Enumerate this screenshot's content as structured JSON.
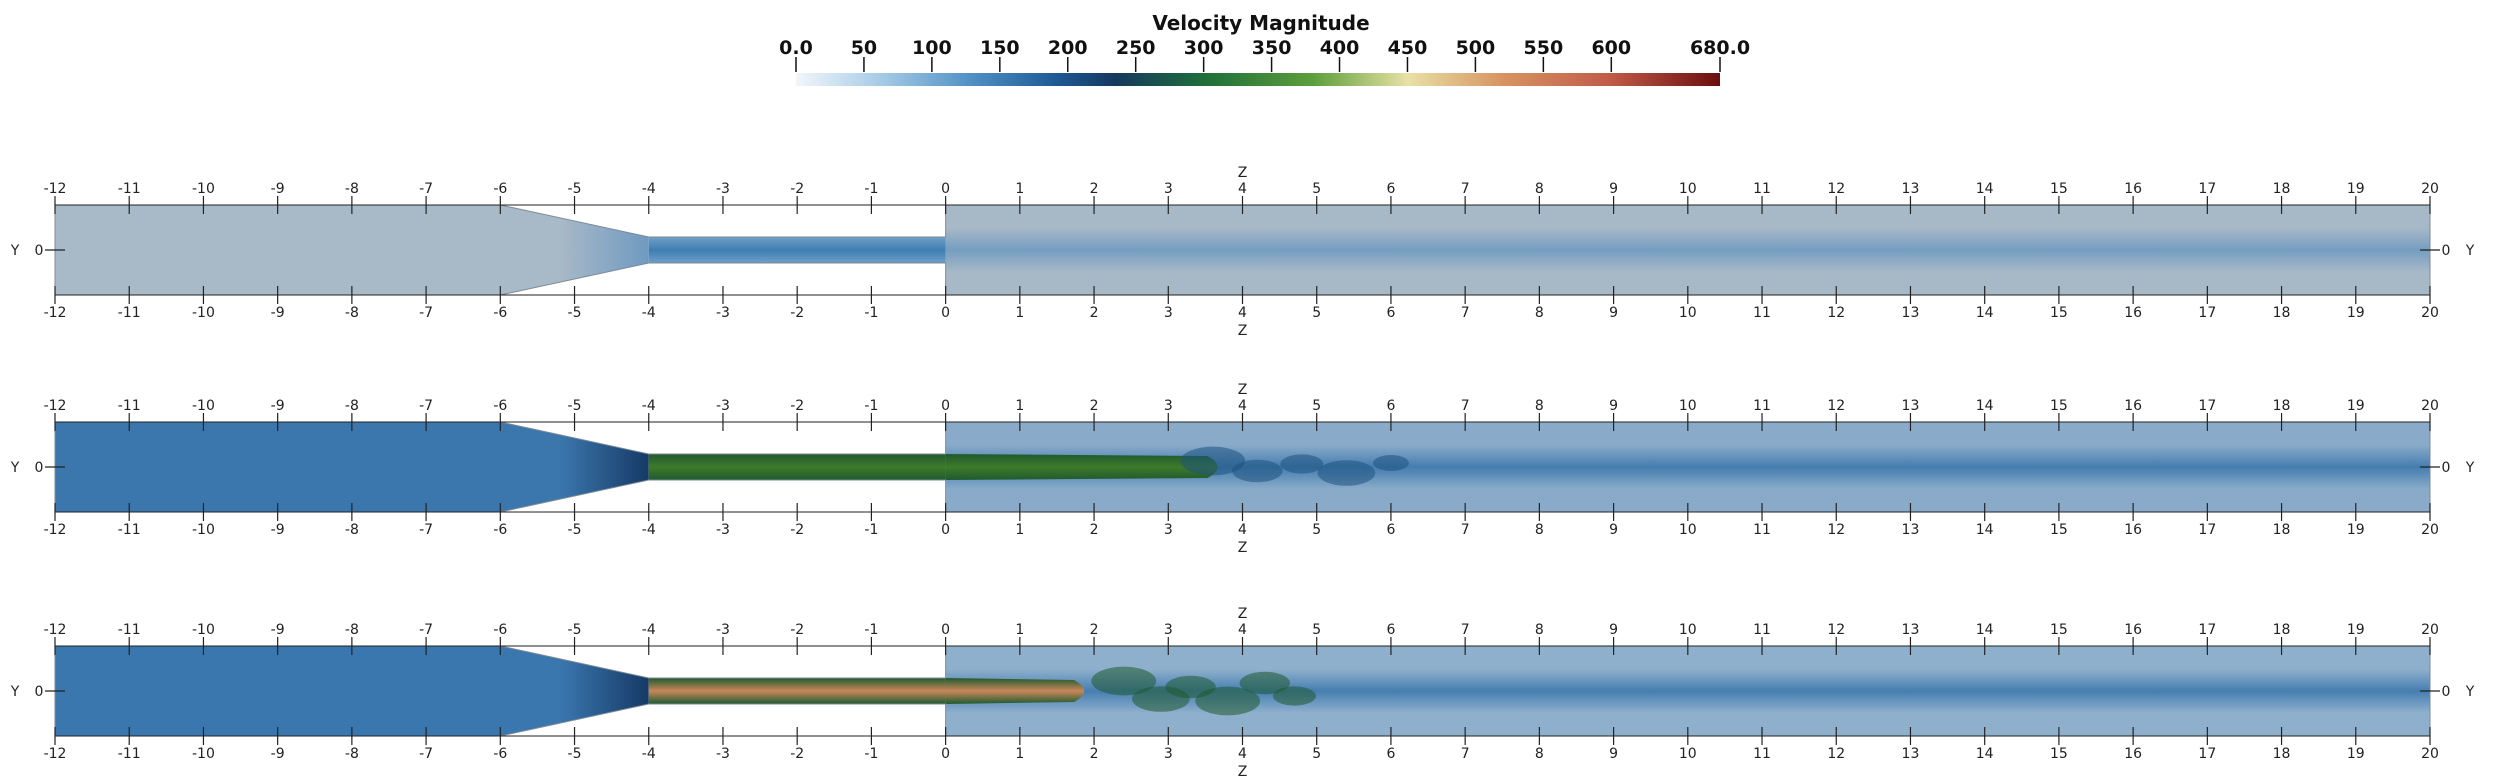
{
  "colorbar": {
    "title": "Velocity Magnitude",
    "min": 0,
    "max": 680,
    "ticks": [
      {
        "value": 0,
        "label": "0.0"
      },
      {
        "value": 50,
        "label": "50"
      },
      {
        "value": 100,
        "label": "100"
      },
      {
        "value": 150,
        "label": "150"
      },
      {
        "value": 200,
        "label": "200"
      },
      {
        "value": 250,
        "label": "250"
      },
      {
        "value": 300,
        "label": "300"
      },
      {
        "value": 350,
        "label": "350"
      },
      {
        "value": 400,
        "label": "400"
      },
      {
        "value": 450,
        "label": "450"
      },
      {
        "value": 500,
        "label": "500"
      },
      {
        "value": 550,
        "label": "550"
      },
      {
        "value": 600,
        "label": "600"
      },
      {
        "value": 680,
        "label": "680.0"
      }
    ],
    "colormap_stops": [
      {
        "value": 0,
        "color": "#f2f6fb"
      },
      {
        "value": 60,
        "color": "#a9cde8"
      },
      {
        "value": 130,
        "color": "#4f8fc4"
      },
      {
        "value": 190,
        "color": "#1e5b97"
      },
      {
        "value": 235,
        "color": "#16385e"
      },
      {
        "value": 300,
        "color": "#1f6e3a"
      },
      {
        "value": 380,
        "color": "#5c9e3a"
      },
      {
        "value": 450,
        "color": "#e8e1a5"
      },
      {
        "value": 520,
        "color": "#d79462"
      },
      {
        "value": 600,
        "color": "#c05a48"
      },
      {
        "value": 680,
        "color": "#6a0d0d"
      }
    ]
  },
  "axis": {
    "z_label": "Z",
    "y_label": "Y",
    "y_tick_label": "0",
    "z_ticks": [
      "-12",
      "-11",
      "-10",
      "-9",
      "-8",
      "-7",
      "-6",
      "-5",
      "-4",
      "-3",
      "-2",
      "-1",
      "0",
      "1",
      "2",
      "3",
      "4",
      "5",
      "6",
      "7",
      "8",
      "9",
      "10",
      "11",
      "12",
      "13",
      "14",
      "15",
      "16",
      "17",
      "18",
      "19",
      "20"
    ],
    "z_min": -12,
    "z_max": 20
  },
  "geometry": {
    "inlet_end_z": -6,
    "throat_start_z": -4,
    "outlet_start_z": 0
  },
  "panels": [
    {
      "id": "panel-1",
      "background_color": "#a7b8c7",
      "jet_color": "#3f7eb2",
      "inlet_color": "#a8b9c8",
      "wake_color": "#6f9ac0"
    },
    {
      "id": "panel-2",
      "background_color": "#89abc9",
      "jet_color": "#3f7a2a",
      "inlet_color": "#3b77ad",
      "wake_color": "#3e78ad"
    },
    {
      "id": "panel-3",
      "background_color": "#8fb0cd",
      "jet_color": "#c8875a",
      "inlet_color": "#3a77ae",
      "wake_color": "#3e79ae"
    }
  ]
}
